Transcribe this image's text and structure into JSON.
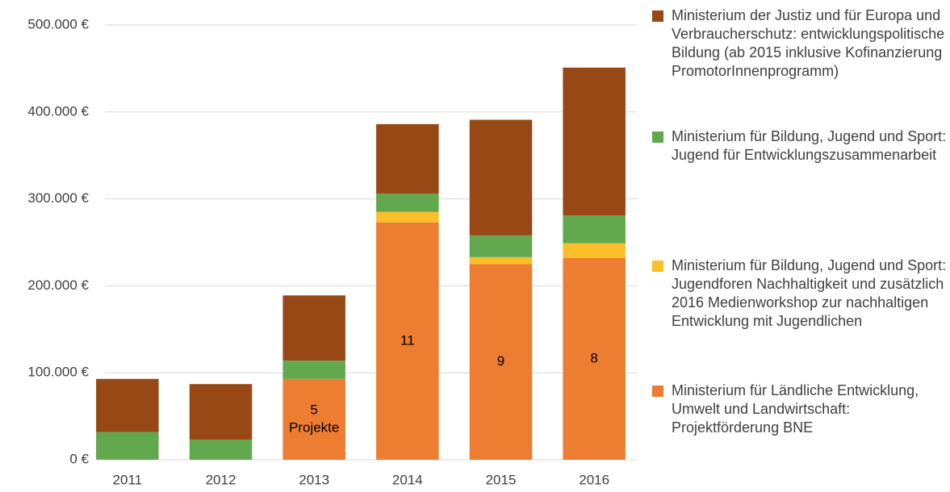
{
  "chart_data": {
    "type": "stacked_bar",
    "categories": [
      "2011",
      "2012",
      "2013",
      "2014",
      "2015",
      "2016"
    ],
    "series": [
      {
        "name": "Ministerium für Ländliche Entwicklung, Umwelt und Landwirtschaft: Projektförderung BNE",
        "color": "#ed7d31",
        "values": [
          0,
          0,
          93000,
          273000,
          225000,
          232000
        ]
      },
      {
        "name": "Ministerium für Bildung, Jugend und Sport: Jugendforen Nachhaltigkeit und zusätzlich 2016 Medienworkshop zur nachhaltigen Entwicklung mit Jugendlichen",
        "color": "#fbbf2a",
        "values": [
          0,
          0,
          0,
          12000,
          8000,
          17000
        ]
      },
      {
        "name": "Ministerium für Bildung, Jugend und Sport: Jugend für Entwicklungszusammenarbeit",
        "color": "#63a84e",
        "values": [
          32000,
          23000,
          21000,
          21000,
          25000,
          32000
        ]
      },
      {
        "name": "Ministerium der Justiz und für Europa und Verbraucherschutz: entwicklungspolitische Bildung (ab 2015 inklusive Kofinanzierung PromotorInnenprogramm)",
        "color": "#974814",
        "values": [
          61000,
          64000,
          75000,
          80000,
          133000,
          170000
        ]
      }
    ],
    "annotations": [
      null,
      null,
      [
        "5",
        "Projekte"
      ],
      [
        "11"
      ],
      [
        "9"
      ],
      [
        "8"
      ]
    ],
    "ylim": [
      0,
      500000
    ],
    "yticks": [
      {
        "value": 0,
        "label": "0 €"
      },
      {
        "value": 100000,
        "label": "100.000 €"
      },
      {
        "value": 200000,
        "label": "200.000 €"
      },
      {
        "value": 300000,
        "label": "300.000 €"
      },
      {
        "value": 400000,
        "label": "400.000 €"
      },
      {
        "value": 500000,
        "label": "500.000 €"
      }
    ],
    "grid": true,
    "legend": "right"
  }
}
